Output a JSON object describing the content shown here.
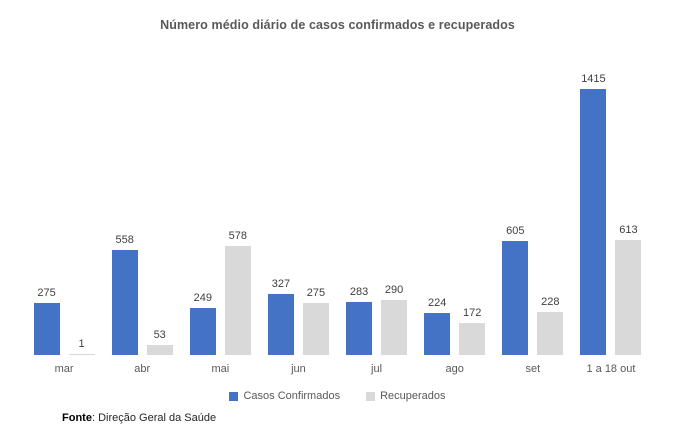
{
  "chart_data": {
    "type": "bar",
    "title": "Número médio diário de casos confirmados e recuperados",
    "categories": [
      "mar",
      "abr",
      "mai",
      "jun",
      "jul",
      "ago",
      "set",
      "1 a 18 out"
    ],
    "series": [
      {
        "name": "Casos Confirmados",
        "color": "#4472C4",
        "values": [
          275,
          558,
          249,
          327,
          283,
          224,
          605,
          1415
        ]
      },
      {
        "name": "Recuperados",
        "color": "#D9D9D9",
        "values": [
          1,
          53,
          578,
          275,
          290,
          172,
          228,
          613
        ]
      }
    ],
    "ylim": [
      0,
      1415
    ],
    "grid": false,
    "axes_visible": false,
    "value_labels": true,
    "legend_position": "bottom"
  },
  "footer": {
    "source_label": "Fonte",
    "source_text": ": Direção Geral da Saúde"
  }
}
